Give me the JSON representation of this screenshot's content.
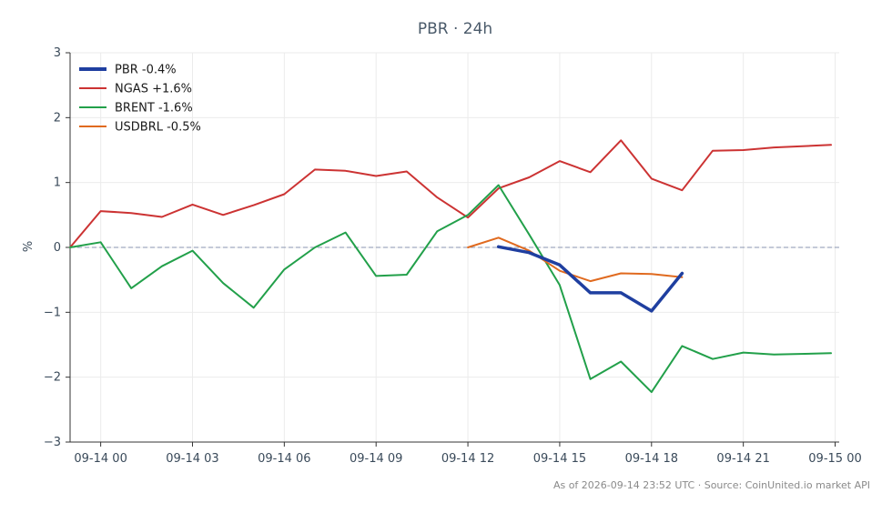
{
  "chart_data": {
    "type": "line",
    "title": "PBR · 24h",
    "ylabel": "%",
    "xlabel": "",
    "ylim": [
      -3,
      3
    ],
    "yticks": [
      3,
      2,
      1,
      0,
      -1,
      -2,
      -3
    ],
    "ytick_labels": [
      "3",
      "2",
      "1",
      "0",
      "−1",
      "−2",
      "−3"
    ],
    "xlim": [
      "09-13 23:00",
      "09-15 00:08"
    ],
    "xticks": [
      "09-14 00:00",
      "09-14 03:00",
      "09-14 06:00",
      "09-14 09:00",
      "09-14 12:00",
      "09-14 15:00",
      "09-14 18:00",
      "09-14 21:00",
      "09-15 00:00"
    ],
    "xtick_labels": [
      "09-14 00",
      "09-14 03",
      "09-14 06",
      "09-14 09",
      "09-14 12",
      "09-14 15",
      "09-14 18",
      "09-14 21",
      "09-15 00"
    ],
    "grid": true,
    "zero_line": true,
    "legend_position": "top-left",
    "series": [
      {
        "name": "PBR -0.4%",
        "color": "#1f3fa0",
        "x": [
          "09-14 13:00",
          "09-14 14:00",
          "09-14 15:00",
          "09-14 16:00",
          "09-14 17:00",
          "09-14 18:00",
          "09-14 19:00"
        ],
        "y": [
          0.01,
          -0.08,
          -0.27,
          -0.7,
          -0.7,
          -0.98,
          -0.4
        ]
      },
      {
        "name": "NGAS +1.6%",
        "color": "#cc3333",
        "x": [
          "09-13 23:00",
          "09-14 00:00",
          "09-14 01:00",
          "09-14 02:00",
          "09-14 03:00",
          "09-14 04:00",
          "09-14 05:00",
          "09-14 06:00",
          "09-14 07:00",
          "09-14 08:00",
          "09-14 09:00",
          "09-14 10:00",
          "09-14 11:00",
          "09-14 12:00",
          "09-14 13:00",
          "09-14 14:00",
          "09-14 15:00",
          "09-14 16:00",
          "09-14 17:00",
          "09-14 18:00",
          "09-14 19:00",
          "09-14 20:00",
          "09-14 21:00",
          "09-14 22:00",
          "09-14 23:52"
        ],
        "y": [
          0.0,
          0.56,
          0.53,
          0.47,
          0.66,
          0.5,
          0.65,
          0.82,
          1.2,
          1.18,
          1.1,
          1.17,
          0.77,
          0.46,
          0.91,
          1.08,
          1.33,
          1.16,
          1.65,
          1.06,
          0.88,
          1.49,
          1.5,
          1.54,
          1.58
        ]
      },
      {
        "name": "BRENT -1.6%",
        "color": "#22a04a",
        "x": [
          "09-13 23:00",
          "09-14 00:00",
          "09-14 01:00",
          "09-14 02:00",
          "09-14 03:00",
          "09-14 04:00",
          "09-14 05:00",
          "09-14 06:00",
          "09-14 07:00",
          "09-14 08:00",
          "09-14 09:00",
          "09-14 10:00",
          "09-14 11:00",
          "09-14 12:00",
          "09-14 13:00",
          "09-14 14:00",
          "09-14 15:00",
          "09-14 16:00",
          "09-14 17:00",
          "09-14 18:00",
          "09-14 19:00",
          "09-14 20:00",
          "09-14 21:00",
          "09-14 22:00",
          "09-14 23:52"
        ],
        "y": [
          0.0,
          0.08,
          -0.63,
          -0.29,
          -0.05,
          -0.55,
          -0.93,
          -0.34,
          0.0,
          0.23,
          -0.44,
          -0.42,
          0.25,
          0.5,
          0.96,
          0.2,
          -0.58,
          -2.03,
          -1.76,
          -2.23,
          -1.52,
          -1.72,
          -1.62,
          -1.65,
          -1.63
        ]
      },
      {
        "name": "USDBRL -0.5%",
        "color": "#e06a1f",
        "x": [
          "09-14 12:00",
          "09-14 13:00",
          "09-14 14:00",
          "09-14 15:00",
          "09-14 16:00",
          "09-14 17:00",
          "09-14 18:00",
          "09-14 19:00"
        ],
        "y": [
          0.0,
          0.15,
          -0.05,
          -0.36,
          -0.52,
          -0.4,
          -0.41,
          -0.46
        ]
      }
    ]
  },
  "footer": {
    "text": "As of 2026-09-14 23:52 UTC · Source: CoinUnited.io market API"
  }
}
